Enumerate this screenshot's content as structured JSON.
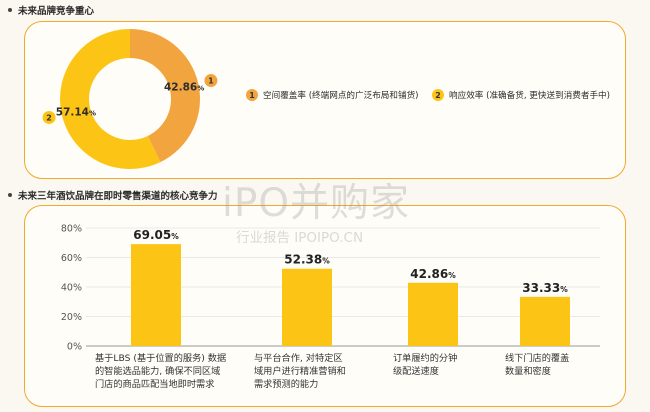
{
  "section1": {
    "title": "未来品牌竞争重心"
  },
  "donut": {
    "slices": [
      {
        "badge": "1",
        "value": 42.86,
        "label": "42.86",
        "unit": "%",
        "color": "#f2a53f"
      },
      {
        "badge": "2",
        "value": 57.14,
        "label": "57.14",
        "unit": "%",
        "color": "#fcc414"
      }
    ]
  },
  "legend": [
    {
      "badge": "1",
      "text": "空间覆盖率 (终端网点的广泛布局和铺货)",
      "color": "#f2a53f"
    },
    {
      "badge": "2",
      "text": "响应效率 (准确备货, 更快送到消费者手中)",
      "color": "#fcc414"
    }
  ],
  "section2": {
    "title": "未来三年酒饮品牌在即时零售渠道的核心竞争力"
  },
  "watermark": {
    "main": "iPO并购家",
    "sub": "行业报告 IPOIPO.CN"
  },
  "chart_data": {
    "type": "bar",
    "categories": [
      "基于LBS (基于位置的服务) 数据的智能选品能力, 确保不同区域门店的商品匹配当地即时需求",
      "与平台合作, 对特定区域用户进行精准营销和需求预测的能力",
      "订单履约的分钟级配送速度",
      "线下门店的覆盖数量和密度"
    ],
    "category_lines": [
      [
        "基于LBS (基于位置的服务) 数据",
        "的智能选品能力, 确保不同区域",
        "门店的商品匹配当地即时需求"
      ],
      [
        "与平台合作, 对特定区",
        "域用户进行精准营销和",
        "需求预测的能力"
      ],
      [
        "订单履约的分钟",
        "级配送速度"
      ],
      [
        "线下门店的覆盖",
        "数量和密度"
      ]
    ],
    "values": [
      69.05,
      52.38,
      42.86,
      33.33
    ],
    "value_labels": [
      "69.05",
      "52.38",
      "42.86",
      "33.33"
    ],
    "unit": "%",
    "yticks": [
      "0%",
      "20%",
      "40%",
      "60%",
      "80%"
    ],
    "ylim": [
      0,
      80
    ],
    "bar_color": "#fcc414"
  }
}
